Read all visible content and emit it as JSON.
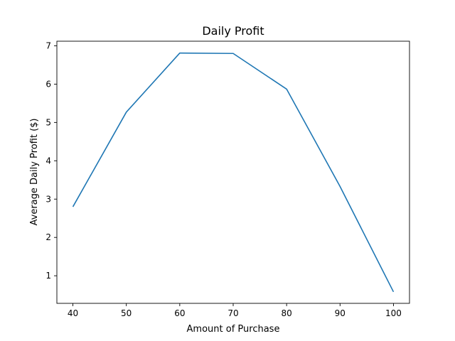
{
  "chart_data": {
    "type": "line",
    "title": "Daily Profit",
    "xlabel": "Amount of Purchase",
    "ylabel": "Average Daily Profit ($)",
    "x": [
      40,
      50,
      60,
      70,
      80,
      90,
      100
    ],
    "series": [
      {
        "values": [
          2.8,
          5.27,
          6.81,
          6.8,
          5.87,
          3.33,
          0.58
        ],
        "color": "#1f77b4"
      }
    ],
    "xlim": [
      37,
      103
    ],
    "ylim": [
      0.28,
      7.12
    ],
    "xticks": [
      40,
      50,
      60,
      70,
      80,
      90,
      100
    ],
    "yticks": [
      1,
      2,
      3,
      4,
      5,
      6,
      7
    ],
    "grid": false
  }
}
